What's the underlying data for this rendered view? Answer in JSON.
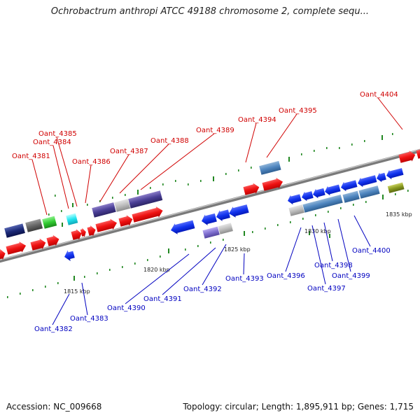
{
  "title": "Ochrobactrum anthropi ATCC 49188 chromosome 2, complete sequ...",
  "footer": {
    "accession": "Accession: NC_009668",
    "summary": "Topology: circular; Length: 1,895,911 bp; Genes: 1,715"
  },
  "scale_labels": [
    "1815 kbp",
    "1820 kbp",
    "1825 kbp",
    "1830 kbp",
    "1835 kbp"
  ],
  "top_genes": [
    "Oant_4381",
    "Oant_4384",
    "Oant_4385",
    "Oant_4386",
    "Oant_4387",
    "Oant_4388",
    "Oant_4389",
    "Oant_4394",
    "Oant_4395",
    "Oant_4404"
  ],
  "bottom_genes": [
    "Oant_4382",
    "Oant_4383",
    "Oant_4390",
    "Oant_4391",
    "Oant_4392",
    "Oant_4393",
    "Oant_4396",
    "Oant_4397",
    "Oant_4398",
    "Oant_4399",
    "Oant_4400"
  ],
  "colors": {
    "forward": "#ee1111",
    "reverse": "#1133ee",
    "backbone": "#8c8c8c",
    "tick": "#228822",
    "top_label": "#d00000",
    "bottom_label": "#0000c0"
  }
}
